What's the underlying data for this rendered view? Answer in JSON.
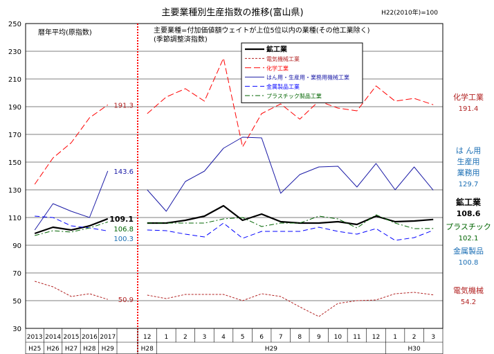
{
  "chart_data": {
    "type": "line",
    "title": "主要業種別生産指数の推移(富山県)",
    "base_note": "H22(2010年)=100",
    "ylim": [
      30,
      250
    ],
    "yticks": [
      30,
      50,
      70,
      90,
      110,
      130,
      150,
      170,
      190,
      210,
      230,
      250
    ],
    "grid": true,
    "annual_label": "暦年平均(原指数)",
    "monthly_note_1": "主要業種=付加価値額ウェイトが上位5位以内の業種(その他工業除く)",
    "monthly_note_2": "(季節調整済指数)",
    "annual_x": [
      "2013",
      "2014",
      "2015",
      "2016",
      "2017"
    ],
    "annual_era": [
      "H25",
      "H26",
      "H27",
      "H28",
      "H29"
    ],
    "monthly_x": [
      "12",
      "1",
      "2",
      "3",
      "4",
      "5",
      "6",
      "7",
      "8",
      "9",
      "10",
      "11",
      "12",
      "1",
      "2",
      "3"
    ],
    "monthly_era": [
      "H28",
      "H29",
      "H30"
    ],
    "series": [
      {
        "key": "mining",
        "name": "鉱工業",
        "color": "#000000",
        "width": 2.2,
        "dash": "",
        "annual": [
          98.5,
          103,
          101,
          104,
          109.1
        ],
        "monthly": [
          106,
          106,
          108,
          111,
          118.5,
          108,
          112.5,
          107,
          106,
          106,
          107,
          105,
          111,
          107,
          107.5,
          108.6
        ]
      },
      {
        "key": "electric",
        "name": "電気機械工業",
        "color": "#b22222",
        "width": 1,
        "dash": "3,2",
        "annual": [
          64,
          60,
          53,
          55,
          50.9
        ],
        "monthly": [
          54,
          51.5,
          54.5,
          54.5,
          54.5,
          50,
          55,
          53,
          45.5,
          38.5,
          48,
          50,
          50.5,
          55,
          56,
          54.2
        ]
      },
      {
        "key": "chemical",
        "name": "化学工業",
        "color": "#ff0000",
        "width": 1,
        "dash": "9,4",
        "annual": [
          134,
          153,
          164,
          182,
          191.3
        ],
        "monthly": [
          185,
          197,
          203,
          194,
          225,
          161,
          185,
          192,
          181,
          194,
          189,
          187,
          205,
          194,
          196,
          191.4
        ]
      },
      {
        "key": "machinery",
        "name": "はん用・生産用・業務用機械工業",
        "color": "#1a1aa6",
        "width": 1,
        "dash": "",
        "annual": [
          101,
          120,
          114.5,
          110,
          143.6
        ],
        "monthly": [
          130,
          114.5,
          136,
          143.5,
          160,
          168,
          167.5,
          127.5,
          141,
          146.5,
          147,
          132,
          149,
          130,
          146.5,
          129.7
        ]
      },
      {
        "key": "metal",
        "name": "金属製品工業",
        "color": "#0000ff",
        "width": 1,
        "dash": "7,4",
        "annual": [
          111,
          110,
          104,
          102.5,
          100.3
        ],
        "monthly": [
          101,
          100.5,
          98,
          96,
          106,
          95,
          100,
          100,
          100,
          103,
          100,
          98,
          102,
          93.5,
          95.5,
          100.8
        ]
      },
      {
        "key": "plastic",
        "name": "プラスチック製品工業",
        "color": "#006400",
        "width": 1,
        "dash": "7,3,2,3",
        "annual": [
          97,
          100.5,
          99.5,
          102.5,
          106.8
        ],
        "monthly": [
          106,
          106,
          106,
          106,
          109,
          110,
          103.5,
          106,
          106,
          111,
          109,
          102.5,
          112,
          106,
          102,
          102.1
        ]
      }
    ],
    "annual_end_labels": [
      {
        "text": "191.3",
        "color": "#b22222",
        "y": 191.3,
        "bold": false
      },
      {
        "text": "143.6",
        "color": "#1a1aa6",
        "y": 143.6,
        "bold": false
      },
      {
        "text": "109.1",
        "color": "#000000",
        "y": 109.1,
        "bold": true
      },
      {
        "text": "106.8",
        "color": "#006400",
        "y": 106.8,
        "bold": false
      },
      {
        "text": "100.3",
        "color": "#1a6eb4",
        "y": 100.3,
        "bold": false
      },
      {
        "text": "50.9",
        "color": "#b22222",
        "y": 50.9,
        "bold": false
      }
    ],
    "right_labels": [
      {
        "name": "化学工業",
        "value": "191.4",
        "color": "#b22222",
        "bold": false
      },
      {
        "name": "は ん用",
        "name2": "生産用",
        "name3": "業務用",
        "value": "129.7",
        "color": "#1a6eb4",
        "bold": false
      },
      {
        "name": "鉱工業",
        "value": "108.6",
        "color": "#000000",
        "bold": true
      },
      {
        "name": "プラスチック",
        "value": "102.1",
        "color": "#006400",
        "bold": false
      },
      {
        "name": "金属製品",
        "value": "100.8",
        "color": "#1a6eb4",
        "bold": false
      },
      {
        "name": "電気機械",
        "value": "54.2",
        "color": "#b22222",
        "bold": false
      }
    ]
  }
}
